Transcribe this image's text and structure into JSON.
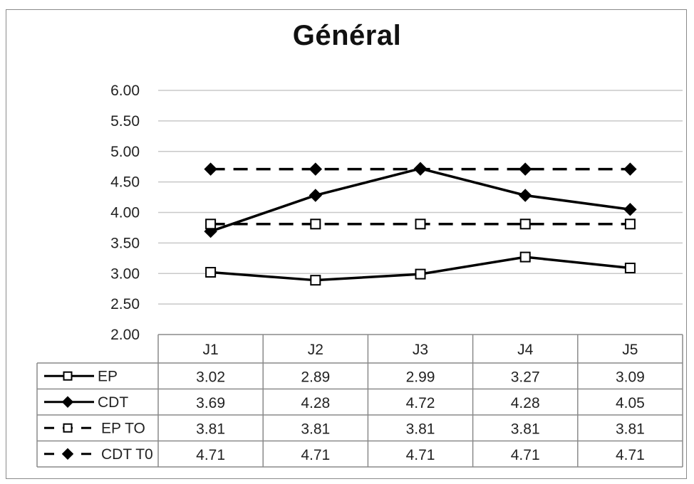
{
  "chart_data": {
    "type": "line",
    "title": "Général",
    "categories": [
      "J1",
      "J2",
      "J3",
      "J4",
      "J5"
    ],
    "ylim": [
      2.0,
      6.0
    ],
    "yticks": [
      "6.00",
      "5.50",
      "5.00",
      "4.50",
      "4.00",
      "3.50",
      "3.00",
      "2.50",
      "2.00"
    ],
    "grid": true,
    "legend": "data-table",
    "series": [
      {
        "name": "EP",
        "values": [
          3.02,
          2.89,
          2.99,
          3.27,
          3.09
        ],
        "style": "solid",
        "marker": "open-square",
        "color": "#000000"
      },
      {
        "name": "CDT",
        "values": [
          3.69,
          4.28,
          4.72,
          4.28,
          4.05
        ],
        "style": "solid",
        "marker": "filled-diamond",
        "color": "#000000"
      },
      {
        "name": "EP TO",
        "values": [
          3.81,
          3.81,
          3.81,
          3.81,
          3.81
        ],
        "style": "dashed",
        "marker": "open-square",
        "color": "#000000"
      },
      {
        "name": "CDT T0",
        "values": [
          4.71,
          4.71,
          4.71,
          4.71,
          4.71
        ],
        "style": "dashed",
        "marker": "filled-diamond",
        "color": "#000000"
      }
    ],
    "table_values": [
      [
        "3.02",
        "2.89",
        "2.99",
        "3.27",
        "3.09"
      ],
      [
        "3.69",
        "4.28",
        "4.72",
        "4.28",
        "4.05"
      ],
      [
        "3.81",
        "3.81",
        "3.81",
        "3.81",
        "3.81"
      ],
      [
        "4.71",
        "4.71",
        "4.71",
        "4.71",
        "4.71"
      ]
    ]
  }
}
